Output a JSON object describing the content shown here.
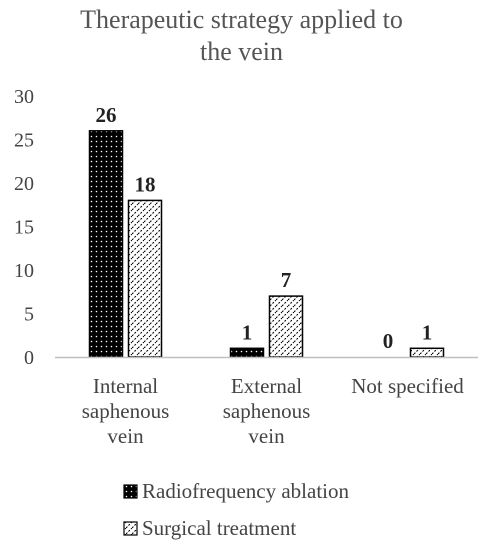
{
  "chart_data": {
    "type": "bar",
    "title_lines": [
      "Therapeutic strategy applied to",
      "the vein"
    ],
    "categories": [
      [
        "Internal",
        "saphenous",
        "vein"
      ],
      [
        "External",
        "saphenous",
        "vein"
      ],
      [
        "Not specified"
      ]
    ],
    "series": [
      {
        "name": "Radiofrequency ablation",
        "values": [
          26,
          1,
          0
        ],
        "pattern": "dots-dark"
      },
      {
        "name": "Surgical treatment",
        "values": [
          18,
          7,
          1
        ],
        "pattern": "hatch-light"
      }
    ],
    "ylim": [
      0,
      30
    ],
    "yticks": [
      0,
      5,
      10,
      15,
      20,
      25,
      30
    ],
    "grid": false,
    "legend": "bottom",
    "data_labels": true
  }
}
